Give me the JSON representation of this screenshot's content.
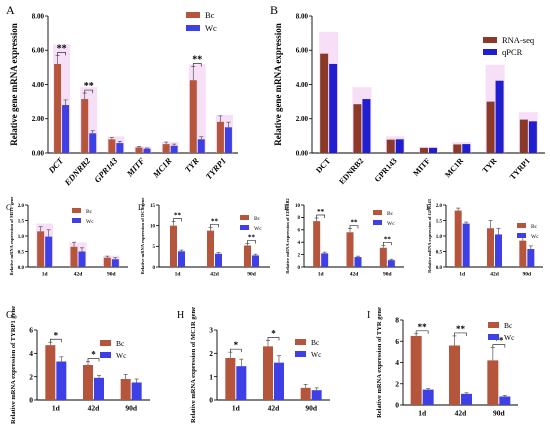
{
  "colors": {
    "bc": "#b5553c",
    "wc": "#3f3fe6",
    "rnaseq": "#8b3a2a",
    "qpcr": "#1f1fd0",
    "sig_red": "#cc0000",
    "ghost": "#f0b8f0"
  },
  "chart_data": [
    {
      "panel": "A",
      "type": "bar",
      "ylabel": "Relative gene mRNA expression",
      "categories": [
        "DCT",
        "EDNRB2",
        "GPR143",
        "MITF",
        "MC1R",
        "TYR",
        "TYRP1"
      ],
      "ylim": [
        0,
        8
      ],
      "yticks": [
        "0.00",
        "2.00",
        "4.00",
        "6.00",
        "8.00"
      ],
      "series": [
        {
          "name": "Bc",
          "values": [
            5.2,
            3.15,
            0.8,
            0.32,
            0.52,
            4.25,
            1.82
          ],
          "errors": [
            0.5,
            0.35,
            0.1,
            0.06,
            0.12,
            0.8,
            0.35
          ]
        },
        {
          "name": "Wc",
          "values": [
            2.8,
            1.15,
            0.58,
            0.25,
            0.42,
            0.8,
            1.5
          ],
          "errors": [
            0.3,
            0.15,
            0.1,
            0.04,
            0.1,
            0.15,
            0.3
          ]
        }
      ],
      "sig": [
        {
          "i": 0,
          "label": "**"
        },
        {
          "i": 1,
          "label": "**"
        },
        {
          "i": 5,
          "label": "**"
        }
      ]
    },
    {
      "panel": "B",
      "type": "bar",
      "ylabel": "Relative gene mRNA expression",
      "categories": [
        "DCT",
        "EDNRB2",
        "GPR143",
        "MITF",
        "MC1R",
        "TYR",
        "TYRP1"
      ],
      "ylim": [
        0,
        8
      ],
      "yticks": [
        "0.00",
        "2.00",
        "4.00",
        "6.00",
        "8.00"
      ],
      "series": [
        {
          "name": "RNA-seq",
          "values": [
            5.8,
            2.85,
            0.78,
            0.3,
            0.5,
            3.0,
            1.95
          ]
        },
        {
          "name": "qPCR",
          "values": [
            5.2,
            3.15,
            0.8,
            0.3,
            0.52,
            4.22,
            1.85
          ]
        }
      ]
    },
    {
      "panel": "C",
      "type": "bar",
      "ylabel": "Relative mRNA expression of MITF gene",
      "categories": [
        "1d",
        "42d",
        "90d"
      ],
      "ylim": [
        0,
        2
      ],
      "yticks": [
        "0.0",
        "0.5",
        "1.0",
        "1.5",
        "2.0"
      ],
      "series": [
        {
          "name": "Bc",
          "values": [
            1.15,
            0.65,
            0.3
          ],
          "errors": [
            0.15,
            0.15,
            0.05
          ]
        },
        {
          "name": "Wc",
          "values": [
            0.98,
            0.5,
            0.25
          ],
          "errors": [
            0.22,
            0.12,
            0.05
          ]
        }
      ],
      "sig": []
    },
    {
      "panel": "D",
      "type": "bar",
      "ylabel": "Relative mRNA expression of DCT gene",
      "categories": [
        "1d",
        "42d",
        "90d"
      ],
      "ylim": [
        0,
        15
      ],
      "yticks": [
        "0",
        "5",
        "10",
        "15"
      ],
      "series": [
        {
          "name": "Bc",
          "values": [
            10.0,
            8.8,
            5.2
          ],
          "errors": [
            1.0,
            0.8,
            0.5
          ]
        },
        {
          "name": "Wc",
          "values": [
            3.8,
            3.2,
            2.8
          ],
          "errors": [
            0.3,
            0.3,
            0.3
          ]
        }
      ],
      "sig": [
        {
          "i": 0,
          "label": "**"
        },
        {
          "i": 1,
          "label": "**"
        },
        {
          "i": 2,
          "label": "**"
        }
      ]
    },
    {
      "panel": "E",
      "type": "bar",
      "ylabel": "Relative mRNA expression of EDNRB2",
      "categories": [
        "1d",
        "42d",
        "90d"
      ],
      "ylim": [
        0,
        10
      ],
      "yticks": [
        "0",
        "2",
        "4",
        "6",
        "8",
        "10"
      ],
      "series": [
        {
          "name": "Bc",
          "values": [
            7.4,
            5.6,
            3.1
          ],
          "errors": [
            0.5,
            0.6,
            0.4
          ]
        },
        {
          "name": "Wc",
          "values": [
            2.2,
            1.6,
            1.1
          ],
          "errors": [
            0.2,
            0.15,
            0.15
          ]
        }
      ],
      "sig": [
        {
          "i": 0,
          "label": "**"
        },
        {
          "i": 1,
          "label": "**"
        },
        {
          "i": 2,
          "label": "**"
        }
      ]
    },
    {
      "panel": "F",
      "type": "bar",
      "ylabel": "Relative mRNA expression of GPR143",
      "categories": [
        "1d",
        "42d",
        "90d"
      ],
      "ylim": [
        0,
        2
      ],
      "yticks": [
        "0.0",
        "0.5",
        "1.0",
        "1.5",
        "2.0"
      ],
      "series": [
        {
          "name": "Bc",
          "values": [
            1.82,
            1.25,
            0.85
          ],
          "errors": [
            0.08,
            0.25,
            0.1
          ]
        },
        {
          "name": "Wc",
          "values": [
            1.4,
            1.05,
            0.58
          ],
          "errors": [
            0.05,
            0.2,
            0.1
          ]
        }
      ],
      "sig": []
    },
    {
      "panel": "G",
      "type": "bar",
      "ylabel": "Relative mRNA expression of TYRP1 gene",
      "categories": [
        "1d",
        "42d",
        "90d"
      ],
      "ylim": [
        0,
        6
      ],
      "yticks": [
        "0",
        "2",
        "4",
        "6"
      ],
      "series": [
        {
          "name": "Bc",
          "values": [
            4.7,
            3.0,
            1.8
          ],
          "errors": [
            0.25,
            0.3,
            0.4
          ]
        },
        {
          "name": "Wc",
          "values": [
            3.3,
            1.9,
            1.5
          ],
          "errors": [
            0.4,
            0.2,
            0.3
          ]
        }
      ],
      "sig": [
        {
          "i": 0,
          "label": "*"
        },
        {
          "i": 1,
          "label": "*"
        }
      ]
    },
    {
      "panel": "H",
      "type": "bar",
      "ylabel": "Relative mRNA expression of MC1R gene",
      "categories": [
        "1d",
        "42d",
        "90d"
      ],
      "ylim": [
        0,
        3
      ],
      "yticks": [
        "0",
        "1",
        "2",
        "3"
      ],
      "series": [
        {
          "name": "Bc",
          "values": [
            1.8,
            2.3,
            0.52
          ],
          "errors": [
            0.25,
            0.25,
            0.15
          ]
        },
        {
          "name": "Wc",
          "values": [
            1.45,
            1.6,
            0.42
          ],
          "errors": [
            0.3,
            0.3,
            0.1
          ]
        }
      ],
      "sig": [
        {
          "i": 0,
          "label": "*"
        },
        {
          "i": 1,
          "label": "*"
        }
      ]
    },
    {
      "panel": "I",
      "type": "bar",
      "ylabel": "Relative mRNA expression of TYR gene",
      "categories": [
        "1d",
        "42d",
        "90d"
      ],
      "ylim": [
        0,
        8
      ],
      "yticks": [
        "0",
        "2",
        "4",
        "6",
        "8"
      ],
      "series": [
        {
          "name": "Bc",
          "values": [
            6.5,
            5.6,
            4.2
          ],
          "errors": [
            0.2,
            0.9,
            1.2
          ]
        },
        {
          "name": "Wc",
          "values": [
            1.45,
            1.05,
            0.8
          ],
          "errors": [
            0.1,
            0.1,
            0.1
          ]
        }
      ],
      "sig": [
        {
          "i": 0,
          "label": "**"
        },
        {
          "i": 1,
          "label": "**"
        },
        {
          "i": 2,
          "label": "**"
        }
      ]
    }
  ]
}
